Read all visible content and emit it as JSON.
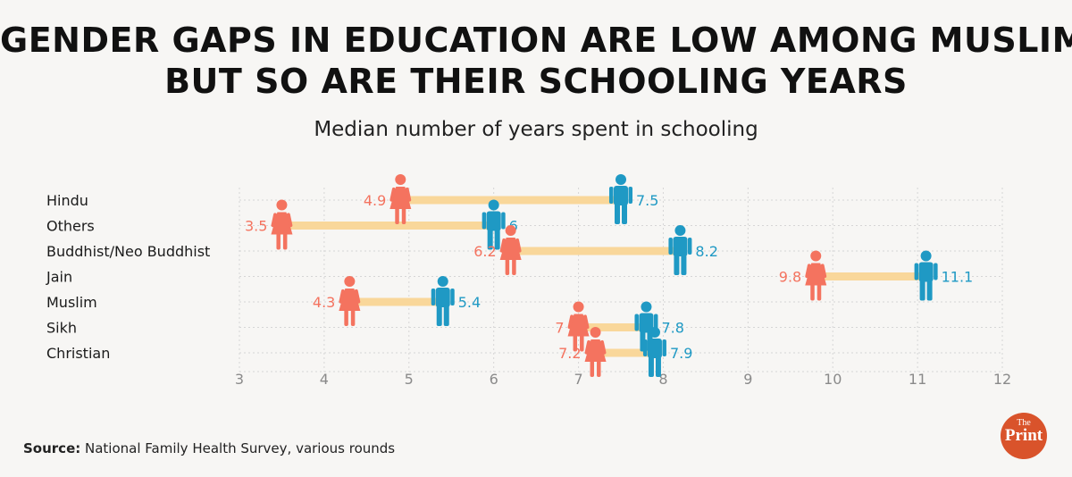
{
  "header": {
    "title_line1": "GENDER GAPS IN EDUCATION ARE LOW AMONG MUSLIMS,",
    "title_line2": "BUT SO ARE THEIR SCHOOLING YEARS",
    "subtitle": "Median number of years spent in schooling"
  },
  "chart_data": {
    "type": "dumbbell",
    "title": "Median number of years spent in schooling",
    "xlim": [
      3,
      12
    ],
    "x_ticks": [
      "3",
      "4",
      "5",
      "6",
      "7",
      "8",
      "9",
      "10",
      "11",
      "12"
    ],
    "grid": true,
    "categories": [
      "Hindu",
      "Others",
      "Buddhist/Neo Buddhist",
      "Jain",
      "Muslim",
      "Sikh",
      "Christian"
    ],
    "female": [
      4.9,
      3.5,
      6.2,
      9.8,
      4.3,
      7.0,
      7.2
    ],
    "male": [
      7.5,
      6.0,
      8.2,
      11.1,
      5.4,
      7.8,
      7.9
    ],
    "female_labels": [
      "4.9",
      "3.5",
      "6.2",
      "9.8",
      "4.3",
      "7",
      "7.2"
    ],
    "male_labels": [
      "7.5",
      "6",
      "8.2",
      "11.1",
      "5.4",
      "7.8",
      "7.9"
    ],
    "colors": {
      "female": "#f4735f",
      "male": "#1f99c4",
      "connector": "#f9d79a",
      "grid": "#d6d6d6",
      "tick": "#8a8a8a"
    },
    "icons": {
      "female": "woman-icon",
      "male": "man-icon"
    }
  },
  "footer": {
    "source_label": "Source:",
    "source_text": " National Family Health Survey, various rounds"
  },
  "logo": {
    "small": "The",
    "big": "Print"
  }
}
